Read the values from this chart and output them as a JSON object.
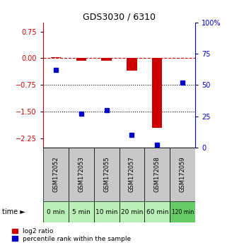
{
  "title": "GDS3030 / 6310",
  "samples": [
    "GSM172052",
    "GSM172053",
    "GSM172055",
    "GSM172057",
    "GSM172058",
    "GSM172059"
  ],
  "time_labels": [
    "0 min",
    "5 min",
    "10 min",
    "20 min",
    "60 min",
    "120 min"
  ],
  "log2_ratio": [
    0.02,
    -0.08,
    -0.07,
    -0.35,
    -1.95,
    0.01
  ],
  "percentile_rank": [
    62,
    27,
    30,
    10,
    2,
    52
  ],
  "ylim_left": [
    -2.5,
    1.0
  ],
  "yticks_left": [
    0.75,
    0,
    -0.75,
    -1.5,
    -2.25
  ],
  "yticks_right": [
    100,
    75,
    50,
    25,
    0
  ],
  "left_color": "#cc0000",
  "right_color": "#0000cc",
  "bar_color": "#cc0000",
  "dot_color": "#0000cc",
  "dotted_lines": [
    -0.75,
    -1.5
  ],
  "gsm_bg": "#c8c8c8",
  "time_bg_light": "#b8f0b8",
  "time_bg_dark": "#66cc66",
  "legend_red_label": "log2 ratio",
  "legend_blue_label": "percentile rank within the sample"
}
